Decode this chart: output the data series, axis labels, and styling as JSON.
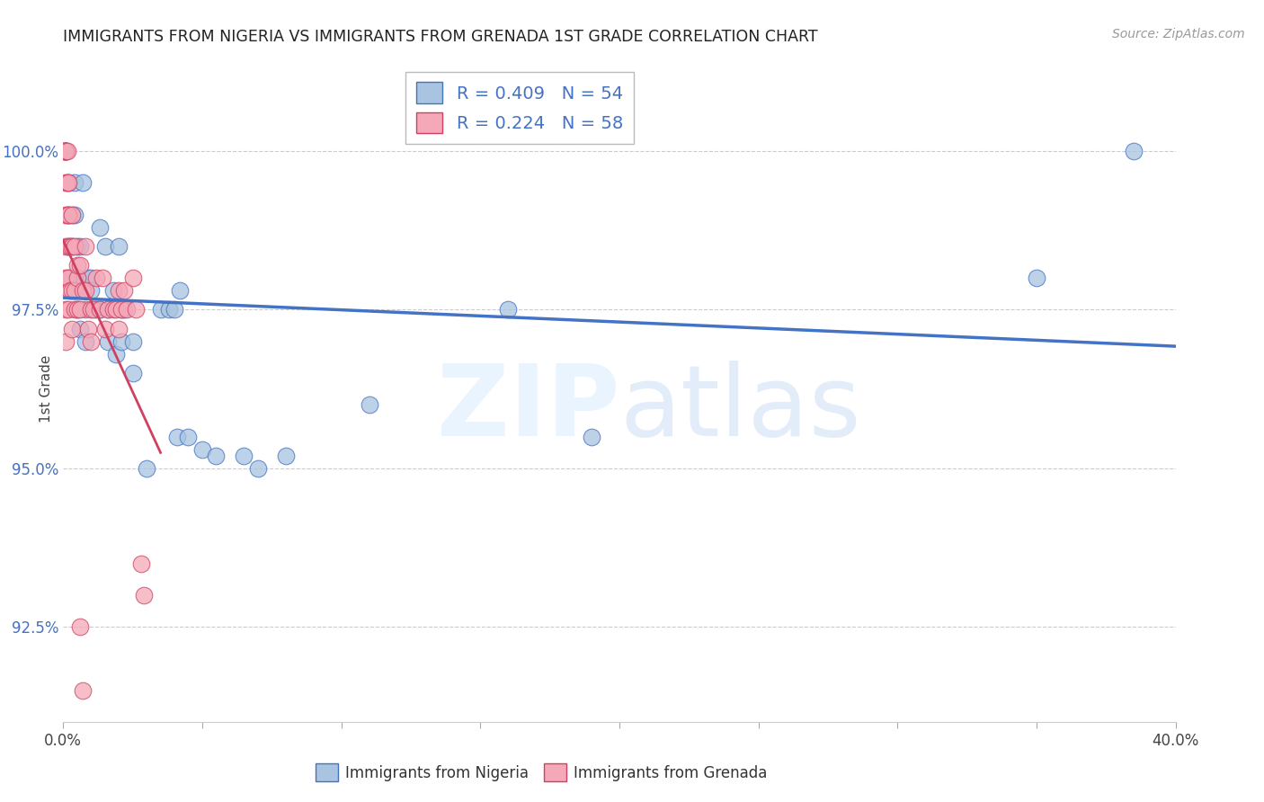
{
  "title": "IMMIGRANTS FROM NIGERIA VS IMMIGRANTS FROM GRENADA 1ST GRADE CORRELATION CHART",
  "source": "Source: ZipAtlas.com",
  "ylabel": "1st Grade",
  "ylabel_ticks": [
    "92.5%",
    "95.0%",
    "97.5%",
    "100.0%"
  ],
  "ylabel_values": [
    92.5,
    95.0,
    97.5,
    100.0
  ],
  "ylim": [
    91.0,
    101.5
  ],
  "xlim": [
    0.0,
    40.0
  ],
  "nigeria_color": "#a8c4e0",
  "grenada_color": "#f4a8b8",
  "nigeria_R": 0.409,
  "nigeria_N": 54,
  "grenada_R": 0.224,
  "grenada_N": 58,
  "nigeria_label": "Immigrants from Nigeria",
  "grenada_label": "Immigrants from Grenada",
  "nigeria_line_color": "#4472c4",
  "grenada_line_color": "#d04060",
  "nigeria_x": [
    0.1,
    0.1,
    0.1,
    0.2,
    0.2,
    0.2,
    0.2,
    0.3,
    0.3,
    0.3,
    0.4,
    0.4,
    0.5,
    0.5,
    0.5,
    0.6,
    0.6,
    0.7,
    0.8,
    0.8,
    0.9,
    1.0,
    1.0,
    1.2,
    1.3,
    1.3,
    1.5,
    1.6,
    1.6,
    1.8,
    1.9,
    2.0,
    2.1,
    2.1,
    2.2,
    2.5,
    2.5,
    3.0,
    3.5,
    3.8,
    4.0,
    4.1,
    4.2,
    4.5,
    5.0,
    5.5,
    6.5,
    7.0,
    8.0,
    11.0,
    16.0,
    19.0,
    35.0,
    38.5
  ],
  "nigeria_y": [
    100.0,
    100.0,
    100.0,
    99.0,
    99.5,
    98.5,
    98.0,
    99.0,
    98.5,
    98.0,
    99.5,
    99.0,
    98.5,
    97.5,
    98.0,
    98.5,
    97.2,
    99.5,
    97.5,
    97.0,
    98.0,
    98.0,
    97.8,
    97.5,
    97.5,
    98.8,
    98.5,
    97.5,
    97.0,
    97.8,
    96.8,
    98.5,
    97.5,
    97.0,
    97.5,
    97.0,
    96.5,
    95.0,
    97.5,
    97.5,
    97.5,
    95.5,
    97.8,
    95.5,
    95.3,
    95.2,
    95.2,
    95.0,
    95.2,
    96.0,
    97.5,
    95.5,
    98.0,
    100.0
  ],
  "grenada_x": [
    0.05,
    0.05,
    0.05,
    0.05,
    0.1,
    0.1,
    0.1,
    0.1,
    0.1,
    0.1,
    0.1,
    0.15,
    0.15,
    0.15,
    0.2,
    0.2,
    0.2,
    0.2,
    0.2,
    0.25,
    0.25,
    0.3,
    0.3,
    0.3,
    0.3,
    0.4,
    0.4,
    0.4,
    0.5,
    0.5,
    0.5,
    0.6,
    0.6,
    0.7,
    0.8,
    0.8,
    0.9,
    1.0,
    1.0,
    1.1,
    1.2,
    1.3,
    1.4,
    1.5,
    1.6,
    1.8,
    1.9,
    2.0,
    2.0,
    2.1,
    2.2,
    2.3,
    2.5,
    2.6,
    2.8,
    2.9,
    0.6,
    0.7
  ],
  "grenada_y": [
    100.0,
    100.0,
    100.0,
    100.0,
    100.0,
    99.5,
    99.0,
    98.5,
    98.0,
    97.5,
    97.0,
    100.0,
    99.5,
    99.0,
    99.5,
    99.0,
    98.5,
    98.0,
    97.5,
    98.5,
    97.8,
    99.0,
    98.5,
    97.8,
    97.2,
    98.5,
    97.8,
    97.5,
    98.0,
    97.5,
    98.2,
    98.2,
    97.5,
    97.8,
    98.5,
    97.8,
    97.2,
    97.5,
    97.0,
    97.5,
    98.0,
    97.5,
    98.0,
    97.2,
    97.5,
    97.5,
    97.5,
    97.8,
    97.2,
    97.5,
    97.8,
    97.5,
    98.0,
    97.5,
    93.5,
    93.0,
    92.5,
    91.5
  ]
}
